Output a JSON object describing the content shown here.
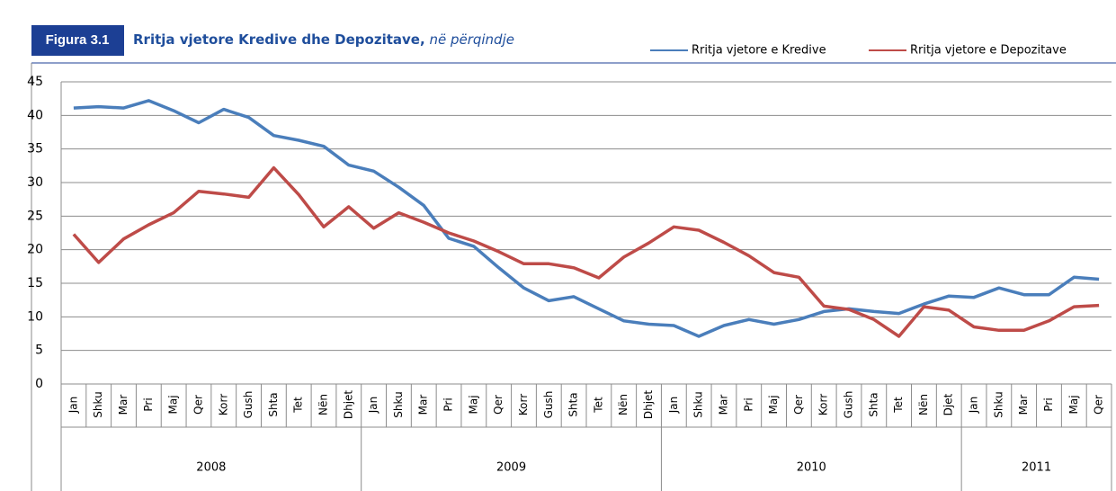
{
  "chart_data": {
    "type": "line",
    "label": "Figura 3.1",
    "title": "Rritja vjetore Kredive dhe Depozitave,",
    "subtitle": "në përqindje",
    "groups": [
      {
        "label": "2008",
        "categories": [
          "Jan",
          "Shku",
          "Mar",
          "Pri",
          "Maj",
          "Qer",
          "Korr",
          "Gush",
          "Shta",
          "Tet",
          "Nën",
          "Dhjet"
        ]
      },
      {
        "label": "2009",
        "categories": [
          "Jan",
          "Shku",
          "Mar",
          "Pri",
          "Maj",
          "Qer",
          "Korr",
          "Gush",
          "Shta",
          "Tet",
          "Nën",
          "Dhjet"
        ]
      },
      {
        "label": "2010",
        "categories": [
          "Jan",
          "Shku",
          "Mar",
          "Pri",
          "Maj",
          "Qer",
          "Korr",
          "Gush",
          "Shta",
          "Tet",
          "Nën",
          "Djet"
        ]
      },
      {
        "label": "2011",
        "categories": [
          "Jan",
          "Shku",
          "Mar",
          "Pri",
          "Maj",
          "Qer"
        ]
      }
    ],
    "series": [
      {
        "name": "Rritja vjetore e Kredive",
        "color": "#4a7ebb",
        "values": [
          41.1,
          41.3,
          41.1,
          42.2,
          40.7,
          38.9,
          40.9,
          39.7,
          37.0,
          36.3,
          35.4,
          32.6,
          31.7,
          29.3,
          26.6,
          21.7,
          20.5,
          17.3,
          14.3,
          12.4,
          13.0,
          11.2,
          9.4,
          8.9,
          8.7,
          7.1,
          8.7,
          9.6,
          8.9,
          9.6,
          10.8,
          11.2,
          10.8,
          10.5,
          11.9,
          13.1,
          12.9,
          14.3,
          13.3,
          13.3,
          15.9,
          15.6
        ]
      },
      {
        "name": "Rritja vjetore e Depozitave",
        "color": "#be4b48",
        "values": [
          22.3,
          18.1,
          21.6,
          23.7,
          25.5,
          28.7,
          28.3,
          27.8,
          32.2,
          28.2,
          23.4,
          26.4,
          23.2,
          25.5,
          24.1,
          22.5,
          21.3,
          19.7,
          17.9,
          17.9,
          17.3,
          15.8,
          18.9,
          21.0,
          23.4,
          22.9,
          21.1,
          19.1,
          16.6,
          15.9,
          11.6,
          11.1,
          9.6,
          7.1,
          11.5,
          11.0,
          8.5,
          8.0,
          8.0,
          9.4,
          11.5,
          11.7
        ]
      }
    ],
    "ylim": [
      0,
      45
    ],
    "yticks": [
      0,
      5,
      10,
      15,
      20,
      25,
      30,
      35,
      40,
      45
    ],
    "grid": true
  }
}
